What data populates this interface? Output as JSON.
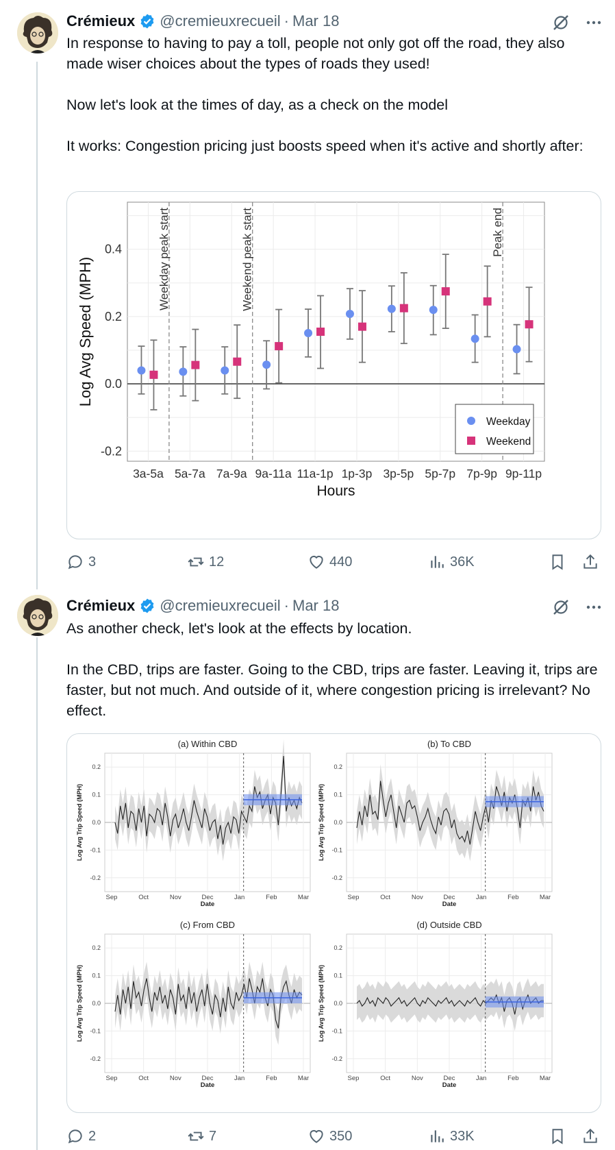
{
  "tweets": [
    {
      "author": "Crémieux",
      "handle": "@cremieuxrecueil",
      "separator": "·",
      "date": "Mar 18",
      "text": [
        "In response to having to pay a toll, people not only got off the road, they also made wiser choices about the types of roads they used!",
        "Now let's look at the times of day, as a check on the model",
        "It works: Congestion pricing just boosts speed when it's active and shortly after:"
      ],
      "replies": "3",
      "reposts": "12",
      "likes": "440",
      "views": "36K"
    },
    {
      "author": "Crémieux",
      "handle": "@cremieuxrecueil",
      "separator": "·",
      "date": "Mar 18",
      "text": [
        "As another check, let's look at the effects by location.",
        "In the CBD, trips are faster. Going to the CBD, trips are faster. Leaving it, trips are faster, but not much. And outside of it, where congestion pricing is irrelevant? No effect."
      ],
      "replies": "2",
      "reposts": "7",
      "likes": "350",
      "views": "33K"
    }
  ],
  "colors": {
    "accent": "#1d9bf0",
    "weekday": "#6a8ff0",
    "weekend": "#d6337a",
    "muted": "#536471"
  },
  "icons": [
    "verified-badge-icon",
    "grok-icon",
    "more-icon",
    "reply-icon",
    "repost-icon",
    "like-icon",
    "views-icon",
    "bookmark-icon",
    "share-icon"
  ],
  "chart_data": [
    {
      "type": "scatter",
      "title": "",
      "xlabel": "Hours",
      "ylabel": "Log Avg Speed (MPH)",
      "categories": [
        "3a-5a",
        "5a-7a",
        "7a-9a",
        "9a-11a",
        "11a-1p",
        "1p-3p",
        "3p-5p",
        "5p-7p",
        "7p-9p",
        "9p-11p"
      ],
      "ylim": [
        -0.23,
        0.54
      ],
      "yticks": [
        "-0.2",
        "0.0",
        "0.2",
        "0.4"
      ],
      "legend_position": "bottom-right",
      "vlines": [
        {
          "label": "Weekday peak start",
          "after": "3a-5a"
        },
        {
          "label": "Weekend peak start",
          "after": "7a-9a"
        },
        {
          "label": "Peak end",
          "after": "7p-9p"
        }
      ],
      "series": [
        {
          "name": "Weekday",
          "values": [
            0.04,
            0.036,
            0.04,
            0.057,
            0.151,
            0.208,
            0.223,
            0.22,
            0.134,
            0.103
          ],
          "low": [
            -0.03,
            -0.036,
            -0.03,
            -0.015,
            0.08,
            0.133,
            0.155,
            0.146,
            0.064,
            0.03
          ],
          "high": [
            0.112,
            0.11,
            0.11,
            0.128,
            0.222,
            0.283,
            0.291,
            0.292,
            0.205,
            0.176
          ]
        },
        {
          "name": "Weekend",
          "values": [
            0.027,
            0.056,
            0.066,
            0.112,
            0.155,
            0.17,
            0.225,
            0.275,
            0.245,
            0.177
          ],
          "low": [
            -0.077,
            -0.05,
            -0.043,
            0.003,
            0.046,
            0.064,
            0.12,
            0.165,
            0.14,
            0.066
          ],
          "high": [
            0.13,
            0.162,
            0.175,
            0.221,
            0.262,
            0.277,
            0.33,
            0.385,
            0.35,
            0.287
          ]
        }
      ]
    },
    {
      "type": "line",
      "panels": [
        {
          "title": "(a) Within CBD",
          "effect": 0.082,
          "values": [
            0.0,
            -0.04,
            0.06,
            0.01,
            0.07,
            -0.02,
            0.04,
            0.03,
            -0.03,
            0.05,
            0.0,
            0.06,
            -0.05,
            0.03,
            0.02,
            0.0,
            0.05,
            0.04,
            -0.01,
            0.07,
            0.02,
            -0.05,
            0.01,
            0.03,
            -0.02,
            0.01,
            0.05,
            0.0,
            -0.03,
            0.02,
            0.08,
            0.04,
            0.01,
            -0.02,
            0.05,
            0.02,
            -0.03,
            0.0,
            0.01,
            -0.06,
            -0.01,
            -0.08,
            -0.02,
            0.0,
            -0.04,
            0.02,
            0.01,
            -0.04,
            0.04,
            0.02,
            0.0,
            0.06,
            0.04,
            0.13,
            0.09,
            0.11,
            0.05,
            0.08,
            0.1,
            0.03,
            0.09,
            0.07,
            -0.01,
            0.1,
            0.24,
            0.04,
            0.09,
            0.06,
            0.08,
            0.05,
            0.09,
            0.07
          ]
        },
        {
          "title": "(b) To CBD",
          "effect": 0.075,
          "values": [
            -0.02,
            0.04,
            -0.01,
            0.06,
            0.02,
            0.1,
            0.03,
            0.04,
            0.01,
            0.15,
            0.08,
            0.02,
            0.07,
            0.1,
            0.04,
            -0.02,
            0.06,
            0.03,
            0.0,
            0.07,
            0.08,
            0.05,
            0.06,
            0.02,
            -0.03,
            0.0,
            0.02,
            0.05,
            0.01,
            -0.02,
            -0.04,
            0.02,
            -0.01,
            0.04,
            0.05,
            0.03,
            -0.02,
            0.01,
            -0.04,
            -0.06,
            -0.05,
            -0.07,
            -0.03,
            -0.08,
            -0.02,
            0.04,
            0.0,
            -0.03,
            0.02,
            0.06,
            0.0,
            0.08,
            0.05,
            0.13,
            0.1,
            0.06,
            0.11,
            0.04,
            0.09,
            0.07,
            0.1,
            0.05,
            -0.02,
            0.08,
            0.06,
            0.09,
            0.04,
            0.13,
            0.08,
            0.11,
            0.06,
            0.04
          ]
        },
        {
          "title": "(c) From CBD",
          "effect": 0.02,
          "values": [
            -0.03,
            0.03,
            -0.04,
            0.05,
            0.0,
            0.06,
            -0.02,
            0.08,
            0.02,
            0.04,
            -0.01,
            0.05,
            0.09,
            0.02,
            -0.03,
            0.04,
            0.01,
            0.06,
            0.0,
            0.03,
            -0.02,
            0.05,
            0.02,
            -0.04,
            0.07,
            0.01,
            0.03,
            -0.02,
            0.06,
            0.0,
            0.04,
            -0.03,
            0.02,
            0.05,
            -0.01,
            0.07,
            0.0,
            -0.04,
            0.03,
            0.01,
            -0.05,
            0.02,
            -0.03,
            0.06,
            0.0,
            -0.02,
            0.04,
            0.01,
            0.03,
            0.07,
            0.02,
            0.09,
            0.05,
            0.0,
            0.06,
            0.04,
            0.09,
            0.02,
            -0.01,
            0.05,
            0.03,
            -0.06,
            -0.09,
            0.02,
            0.06,
            0.08,
            0.03,
            0.0,
            0.05,
            0.02,
            0.04,
            0.03
          ]
        },
        {
          "title": "(d) Outside CBD",
          "effect": 0.005,
          "values": [
            0.0,
            0.01,
            -0.01,
            0.0,
            0.02,
            0.0,
            0.01,
            -0.01,
            0.02,
            0.01,
            0.0,
            0.02,
            0.01,
            -0.01,
            0.0,
            0.01,
            0.02,
            0.0,
            0.01,
            -0.01,
            0.0,
            0.01,
            0.02,
            0.0,
            -0.01,
            0.01,
            0.0,
            0.02,
            0.01,
            0.0,
            -0.01,
            0.01,
            0.0,
            0.01,
            0.02,
            0.0,
            0.01,
            -0.01,
            0.0,
            0.01,
            0.0,
            -0.01,
            0.01,
            0.0,
            0.01,
            0.02,
            0.0,
            -0.01,
            0.01,
            0.0,
            0.01,
            0.02,
            0.01,
            0.03,
            0.0,
            0.02,
            -0.03,
            0.01,
            0.02,
            0.0,
            -0.04,
            0.01,
            0.02,
            -0.02,
            0.01,
            0.03,
            0.0,
            0.01,
            0.02,
            0.0,
            0.01,
            0.01
          ]
        }
      ],
      "xlabel": "Date",
      "ylabel": "Log Avg Trip Speed (MPH)",
      "xticks": [
        "Sep",
        "Oct",
        "Nov",
        "Dec",
        "Jan",
        "Feb",
        "Mar"
      ],
      "yticks": [
        "0.2",
        "0.1",
        "0.0",
        "-0.1",
        "-0.2"
      ],
      "ylim": [
        -0.25,
        0.25
      ],
      "treatment_start": "Jan"
    }
  ]
}
